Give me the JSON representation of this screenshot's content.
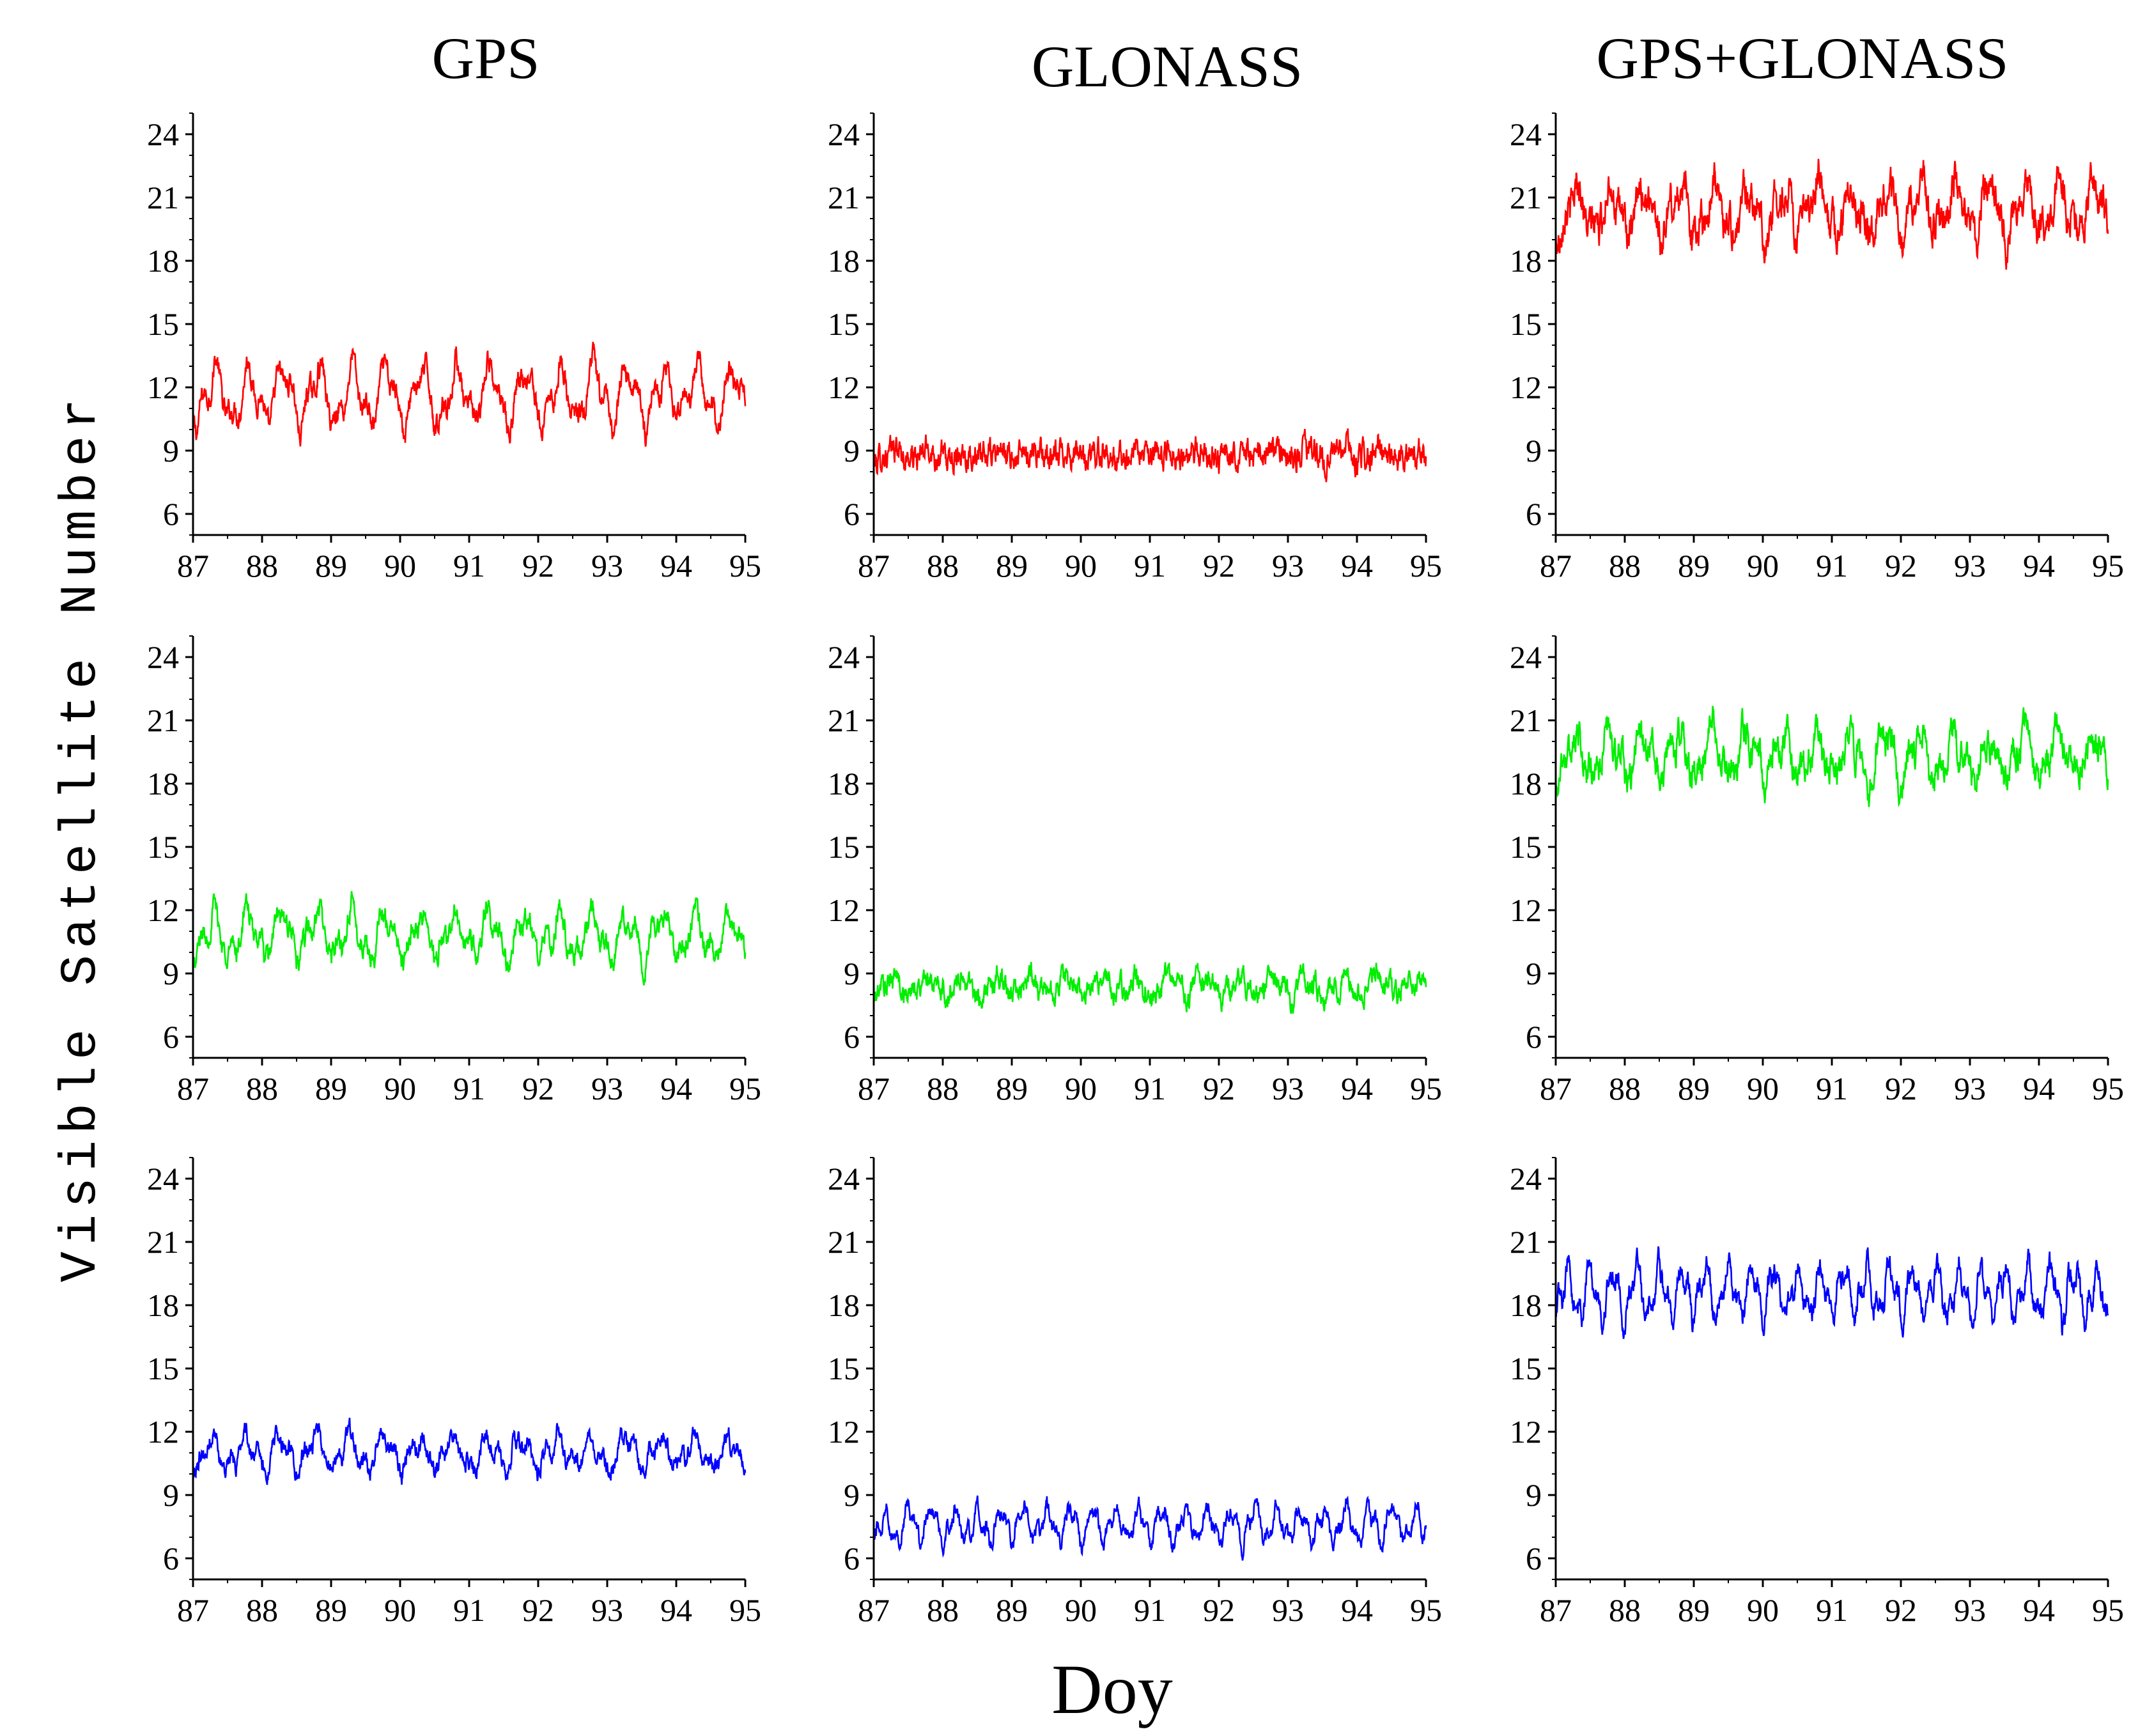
{
  "figure": {
    "column_titles": [
      "GPS",
      "GLONASS",
      "GPS+GLONASS"
    ],
    "shared_ylabel": "Visible Satellite Number",
    "shared_xlabel": "Doy"
  },
  "colors": {
    "row_colors": [
      "#ff0000",
      "#00ee00",
      "#0000ff"
    ],
    "axis": "#000000"
  },
  "chart_data": [
    {
      "type": "line",
      "row": 0,
      "col": 0,
      "title": "GPS",
      "series": [
        {
          "name": "GPS",
          "color": "#ff0000",
          "mean": 11.6,
          "amplitude": 2.0,
          "noise": 0.5,
          "cycles_per_day": 2.0
        }
      ],
      "x": {
        "range": [
          87,
          95
        ],
        "ticks": [
          87,
          88,
          89,
          90,
          91,
          92,
          93,
          94,
          95
        ]
      },
      "ylim": [
        5,
        25
      ],
      "yticks": [
        6,
        9,
        12,
        15,
        18,
        21,
        24
      ]
    },
    {
      "type": "line",
      "row": 0,
      "col": 1,
      "title": "GLONASS",
      "series": [
        {
          "name": "GLONASS",
          "color": "#ff0000",
          "mean": 8.8,
          "amplitude": 0.4,
          "noise": 0.6,
          "cycles_per_day": 2.0
        }
      ],
      "x": {
        "range": [
          87,
          95
        ],
        "ticks": [
          87,
          88,
          89,
          90,
          91,
          92,
          93,
          94,
          95
        ]
      },
      "ylim": [
        5,
        25
      ],
      "yticks": [
        6,
        9,
        12,
        15,
        18,
        21,
        24
      ]
    },
    {
      "type": "line",
      "row": 0,
      "col": 2,
      "title": "GPS+GLONASS",
      "series": [
        {
          "name": "GPS+GLONASS",
          "color": "#ff0000",
          "mean": 20.4,
          "amplitude": 1.8,
          "noise": 0.8,
          "cycles_per_day": 2.0
        }
      ],
      "x": {
        "range": [
          87,
          95
        ],
        "ticks": [
          87,
          88,
          89,
          90,
          91,
          92,
          93,
          94,
          95
        ]
      },
      "ylim": [
        5,
        25
      ],
      "yticks": [
        6,
        9,
        12,
        15,
        18,
        21,
        24
      ]
    },
    {
      "type": "line",
      "row": 1,
      "col": 0,
      "series": [
        {
          "name": "GPS",
          "color": "#00ee00",
          "mean": 10.8,
          "amplitude": 1.6,
          "noise": 0.5,
          "cycles_per_day": 2.0
        }
      ],
      "x": {
        "range": [
          87,
          95
        ],
        "ticks": [
          87,
          88,
          89,
          90,
          91,
          92,
          93,
          94,
          95
        ]
      },
      "ylim": [
        5,
        25
      ],
      "yticks": [
        6,
        9,
        12,
        15,
        18,
        21,
        24
      ]
    },
    {
      "type": "line",
      "row": 1,
      "col": 1,
      "series": [
        {
          "name": "GLONASS",
          "color": "#00ee00",
          "mean": 8.4,
          "amplitude": 0.7,
          "noise": 0.5,
          "cycles_per_day": 2.0
        }
      ],
      "x": {
        "range": [
          87,
          95
        ],
        "ticks": [
          87,
          88,
          89,
          90,
          91,
          92,
          93,
          94,
          95
        ]
      },
      "ylim": [
        5,
        25
      ],
      "yticks": [
        6,
        9,
        12,
        15,
        18,
        21,
        24
      ]
    },
    {
      "type": "line",
      "row": 1,
      "col": 2,
      "series": [
        {
          "name": "GPS+GLONASS",
          "color": "#00ee00",
          "mean": 19.3,
          "amplitude": 1.6,
          "noise": 0.7,
          "cycles_per_day": 2.0
        }
      ],
      "x": {
        "range": [
          87,
          95
        ],
        "ticks": [
          87,
          88,
          89,
          90,
          91,
          92,
          93,
          94,
          95
        ]
      },
      "ylim": [
        5,
        25
      ],
      "yticks": [
        6,
        9,
        12,
        15,
        18,
        21,
        24
      ]
    },
    {
      "type": "line",
      "row": 2,
      "col": 0,
      "series": [
        {
          "name": "GPS",
          "color": "#0000ff",
          "mean": 11.0,
          "amplitude": 1.2,
          "noise": 0.4,
          "cycles_per_day": 2.0
        }
      ],
      "x": {
        "range": [
          87,
          95
        ],
        "ticks": [
          87,
          88,
          89,
          90,
          91,
          92,
          93,
          94,
          95
        ]
      },
      "ylim": [
        5,
        25
      ],
      "yticks": [
        6,
        9,
        12,
        15,
        18,
        21,
        24
      ]
    },
    {
      "type": "line",
      "row": 2,
      "col": 1,
      "series": [
        {
          "name": "GLONASS",
          "color": "#0000ff",
          "mean": 7.6,
          "amplitude": 1.2,
          "noise": 0.35,
          "cycles_per_day": 3.0
        }
      ],
      "x": {
        "range": [
          87,
          95
        ],
        "ticks": [
          87,
          88,
          89,
          90,
          91,
          92,
          93,
          94,
          95
        ]
      },
      "ylim": [
        5,
        25
      ],
      "yticks": [
        6,
        9,
        12,
        15,
        18,
        21,
        24
      ]
    },
    {
      "type": "line",
      "row": 2,
      "col": 2,
      "series": [
        {
          "name": "GPS+GLONASS",
          "color": "#0000ff",
          "mean": 18.6,
          "amplitude": 1.8,
          "noise": 0.5,
          "cycles_per_day": 3.0
        }
      ],
      "x": {
        "range": [
          87,
          95
        ],
        "ticks": [
          87,
          88,
          89,
          90,
          91,
          92,
          93,
          94,
          95
        ]
      },
      "ylim": [
        5,
        25
      ],
      "yticks": [
        6,
        9,
        12,
        15,
        18,
        21,
        24
      ]
    }
  ]
}
